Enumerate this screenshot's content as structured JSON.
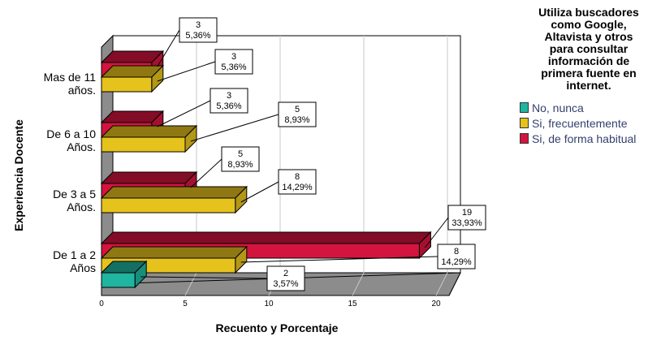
{
  "chart_data": {
    "type": "bar",
    "orientation": "horizontal",
    "style": "3d",
    "categories": [
      "De 1 a 2 Años",
      "De 3 a 5 Años.",
      "De 6 a 10 Años.",
      "Mas de 11 años."
    ],
    "category_lines": [
      [
        "De 1 a 2",
        "Años"
      ],
      [
        "De 3 a 5",
        "Años."
      ],
      [
        "De 6 a 10",
        "Años."
      ],
      [
        "Mas de 11",
        "años."
      ]
    ],
    "series": [
      {
        "name": "No, nunca",
        "color": "#1fb5a0",
        "values": [
          2,
          null,
          null,
          null
        ],
        "labels": [
          [
            "2",
            "3,57%"
          ],
          null,
          null,
          null
        ]
      },
      {
        "name": "Si, frecuentemente",
        "color": "#e6c21d",
        "values": [
          8,
          8,
          5,
          3
        ],
        "labels": [
          [
            "8",
            "14,29%"
          ],
          [
            "8",
            "14,29%"
          ],
          [
            "5",
            "8,93%"
          ],
          [
            "3",
            "5,36%"
          ]
        ]
      },
      {
        "name": "Si, de forma habitual",
        "color": "#d3143f",
        "values": [
          19,
          5,
          3,
          3
        ],
        "labels": [
          [
            "19",
            "33,93%"
          ],
          [
            "5",
            "8,93%"
          ],
          [
            "3",
            "5,36%"
          ],
          [
            "3",
            "5,36%"
          ]
        ]
      }
    ],
    "xlim": [
      0,
      20
    ],
    "xticks": [
      0,
      5,
      10,
      15,
      20
    ],
    "xlabel": "Recuento y Porcentaje",
    "ylabel": "Experiencia Docente",
    "legend_title": "Utiliza buscadores como Google, Altavista y otros para consultar información de primera fuente en internet.",
    "legend_title_lines": [
      "Utiliza buscadores",
      "como Google,",
      "Altavista y otros",
      "para consultar",
      "información de",
      "primera fuente en",
      "internet."
    ],
    "legend_position": "top-right",
    "grid": true
  }
}
